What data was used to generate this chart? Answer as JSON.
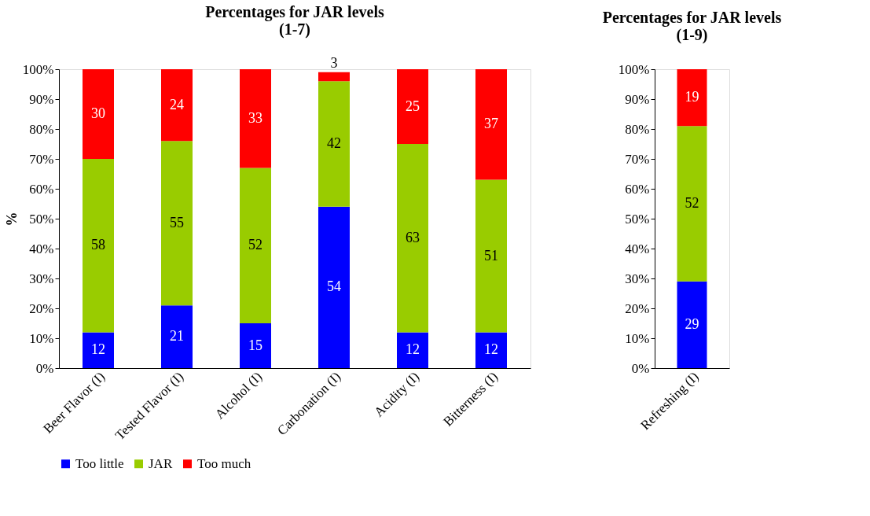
{
  "chart_data": [
    {
      "type": "bar",
      "title": [
        "Percentages for JAR levels",
        "(1-7)"
      ],
      "ylabel": "%",
      "stacked": true,
      "data_labels": true,
      "legend": "bottom",
      "grid": false,
      "categories": [
        "Beer Flavor (I)",
        "Tested Flavor (I)",
        "Alcohol (I)",
        "Carbonation (I)",
        "Acidity (I)",
        "Bitterness (I)"
      ],
      "ylim": [
        0,
        100
      ],
      "yticks": [
        {
          "value": 0,
          "label": "0%"
        },
        {
          "value": 10,
          "label": "10%"
        },
        {
          "value": 20,
          "label": "20%"
        },
        {
          "value": 30,
          "label": "30%"
        },
        {
          "value": 40,
          "label": "40%"
        },
        {
          "value": 50,
          "label": "50%"
        },
        {
          "value": 60,
          "label": "60%"
        },
        {
          "value": 70,
          "label": "70%"
        },
        {
          "value": 80,
          "label": "80%"
        },
        {
          "value": 90,
          "label": "90%"
        },
        {
          "value": 100,
          "label": "100%"
        }
      ],
      "series": [
        {
          "name": "Too little",
          "color": "#0000ff",
          "values": [
            12,
            21,
            15,
            54,
            12,
            12
          ]
        },
        {
          "name": "JAR",
          "color": "#99cc00",
          "values": [
            58,
            55,
            52,
            42,
            63,
            51
          ]
        },
        {
          "name": "Too much",
          "color": "#ff0000",
          "values": [
            30,
            24,
            33,
            3,
            25,
            37
          ]
        }
      ]
    },
    {
      "type": "bar",
      "title": [
        "Percentages for JAR levels",
        "(1-9)"
      ],
      "stacked": true,
      "data_labels": true,
      "grid": false,
      "categories": [
        "Refreshing (I)"
      ],
      "ylim": [
        0,
        100
      ],
      "yticks": [
        {
          "value": 0,
          "label": "0%"
        },
        {
          "value": 10,
          "label": "10%"
        },
        {
          "value": 20,
          "label": "20%"
        },
        {
          "value": 30,
          "label": "30%"
        },
        {
          "value": 40,
          "label": "40%"
        },
        {
          "value": 50,
          "label": "50%"
        },
        {
          "value": 60,
          "label": "60%"
        },
        {
          "value": 70,
          "label": "70%"
        },
        {
          "value": 80,
          "label": "80%"
        },
        {
          "value": 90,
          "label": "90%"
        },
        {
          "value": 100,
          "label": "100%"
        }
      ],
      "series": [
        {
          "name": "Too little",
          "color": "#0000ff",
          "values": [
            29
          ]
        },
        {
          "name": "JAR",
          "color": "#99cc00",
          "values": [
            52
          ]
        },
        {
          "name": "Too much",
          "color": "#ff0000",
          "values": [
            19
          ]
        }
      ]
    }
  ]
}
